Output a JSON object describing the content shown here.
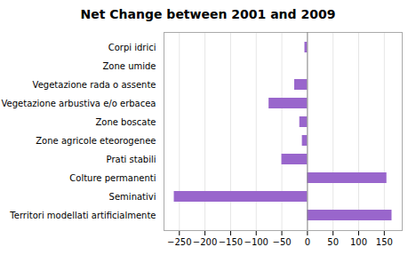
{
  "chart_data": {
    "type": "bar",
    "title": "Net Change between 2001 and 2009",
    "orientation": "horizontal",
    "categories": [
      "Corpi idrici",
      "Zone umide",
      "Vegetazione rada o assente",
      "Vegetazione arbustiva e/o erbacea",
      "Zone boscate",
      "Zone agricole eteorogenee",
      "Prati stabili",
      "Colture permanenti",
      "Seminativi",
      "Territori modellati artificialmente"
    ],
    "values": [
      -5,
      0,
      -25,
      -75,
      -15,
      -10,
      -50,
      155,
      -260,
      165
    ],
    "color": "#9966cc",
    "xlim": [
      -280,
      185
    ],
    "xticks": [
      -250,
      -200,
      -150,
      -100,
      -50,
      0,
      50,
      100,
      150
    ],
    "grid": true
  }
}
